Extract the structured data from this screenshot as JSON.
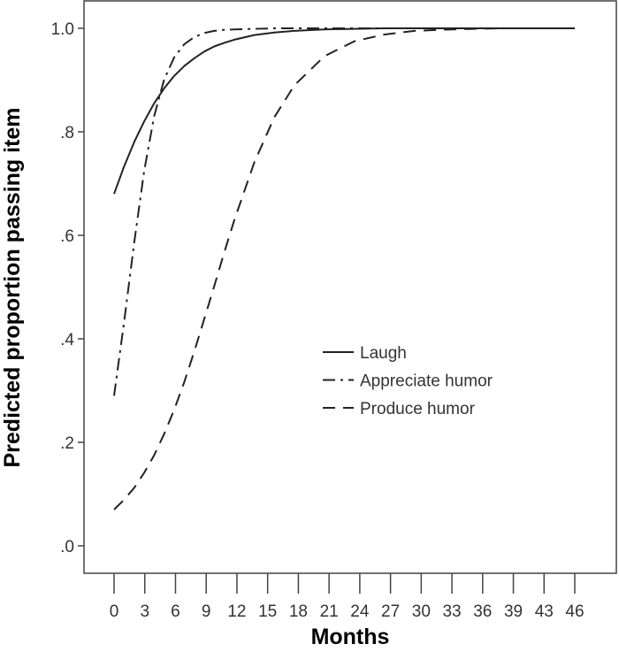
{
  "chart_data": {
    "type": "line",
    "xlabel": "Months",
    "ylabel": "Predicted proportion passing item",
    "x_tick_labels": [
      "0",
      "3",
      "6",
      "9",
      "12",
      "15",
      "18",
      "21",
      "24",
      "27",
      "30",
      "33",
      "36",
      "39",
      "43",
      "46"
    ],
    "y_tick_labels": [
      ".0",
      ".2",
      ".4",
      ".6",
      ".8",
      "1.0"
    ],
    "y_ticks": [
      0,
      0.2,
      0.4,
      0.6,
      0.8,
      1.0
    ],
    "ylim": [
      0,
      1
    ],
    "xlim": [
      0,
      46
    ],
    "grid": false,
    "legend_position": "center-right",
    "x": [
      0,
      1,
      2,
      3,
      4,
      5,
      6,
      7,
      8,
      9,
      10,
      11,
      12,
      14,
      16,
      18,
      21,
      24,
      27,
      30,
      33,
      36,
      39,
      42,
      46
    ],
    "series": [
      {
        "name": "Laugh",
        "style": "solid",
        "values": [
          0.68,
          0.733,
          0.78,
          0.82,
          0.855,
          0.884,
          0.908,
          0.927,
          0.942,
          0.955,
          0.965,
          0.972,
          0.978,
          0.987,
          0.992,
          0.995,
          0.998,
          0.999,
          1.0,
          1.0,
          1.0,
          1.0,
          1.0,
          1.0,
          1.0
        ]
      },
      {
        "name": "Appreciate humor",
        "style": "dash-dot",
        "values": [
          0.29,
          0.432,
          0.585,
          0.724,
          0.83,
          0.901,
          0.944,
          0.969,
          0.983,
          0.991,
          0.995,
          0.997,
          0.998,
          0.999,
          1.0,
          1.0,
          1.0,
          1.0,
          1.0,
          1.0,
          1.0,
          1.0,
          1.0,
          1.0,
          1.0
        ]
      },
      {
        "name": "Produce humor",
        "style": "dashed",
        "values": [
          0.07,
          0.089,
          0.112,
          0.141,
          0.175,
          0.216,
          0.263,
          0.316,
          0.375,
          0.438,
          0.502,
          0.567,
          0.629,
          0.741,
          0.828,
          0.89,
          0.946,
          0.975,
          0.988,
          0.995,
          0.9975,
          0.999,
          1.0,
          1.0,
          1.0
        ]
      }
    ]
  }
}
